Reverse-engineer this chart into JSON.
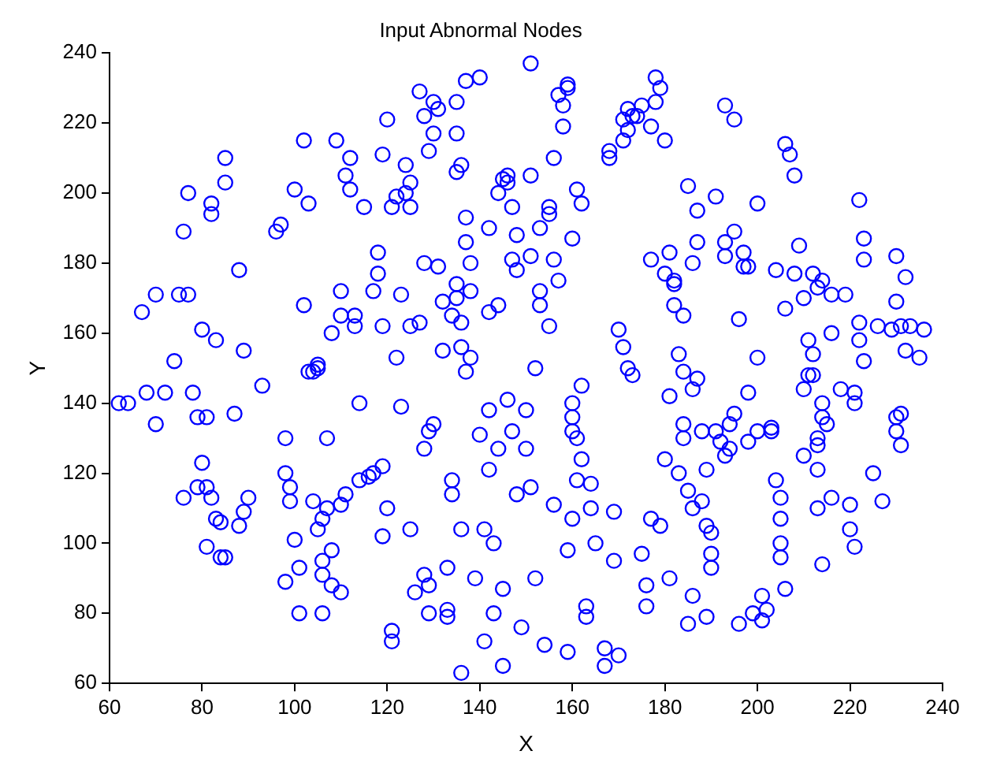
{
  "chart_data": {
    "type": "scatter",
    "title": "Input Abnormal Nodes",
    "xlabel": "X",
    "ylabel": "Y",
    "xlim": [
      60,
      240
    ],
    "xticks": [
      60,
      80,
      100,
      120,
      140,
      160,
      180,
      200,
      220,
      240
    ],
    "ylim": [
      60,
      240
    ],
    "yticks": [
      60,
      80,
      100,
      120,
      140,
      160,
      180,
      200,
      220,
      240
    ],
    "marker": "circle",
    "grid": false,
    "legend": false,
    "series": [
      {
        "color": "#0000ff",
        "x": [
          62,
          64,
          67,
          68,
          70,
          70,
          72,
          74,
          75,
          76,
          76,
          77,
          77,
          78,
          79,
          79,
          80,
          80,
          81,
          81,
          81,
          82,
          82,
          82,
          83,
          83,
          84,
          84,
          85,
          85,
          85,
          87,
          88,
          88,
          89,
          89,
          90,
          93,
          96,
          97,
          98,
          98,
          98,
          99,
          99,
          100,
          100,
          101,
          101,
          102,
          102,
          103,
          103,
          104,
          104,
          105,
          105,
          105,
          106,
          106,
          106,
          106,
          107,
          107,
          108,
          108,
          108,
          109,
          110,
          110,
          110,
          110,
          111,
          111,
          112,
          112,
          113,
          113,
          114,
          114,
          115,
          116,
          117,
          117,
          118,
          118,
          119,
          119,
          119,
          119,
          120,
          120,
          121,
          121,
          121,
          122,
          122,
          123,
          123,
          124,
          124,
          125,
          125,
          125,
          125,
          126,
          127,
          127,
          128,
          128,
          128,
          128,
          129,
          129,
          129,
          129,
          130,
          130,
          130,
          131,
          131,
          132,
          132,
          133,
          133,
          133,
          134,
          134,
          134,
          135,
          135,
          135,
          135,
          135,
          136,
          136,
          136,
          136,
          136,
          137,
          137,
          137,
          137,
          138,
          138,
          138,
          139,
          140,
          140,
          141,
          141,
          142,
          142,
          142,
          142,
          143,
          143,
          144,
          144,
          144,
          145,
          145,
          145,
          146,
          146,
          146,
          147,
          147,
          147,
          148,
          148,
          148,
          149,
          150,
          150,
          151,
          151,
          151,
          151,
          152,
          152,
          153,
          153,
          153,
          154,
          155,
          155,
          155,
          156,
          156,
          156,
          157,
          157,
          158,
          158,
          159,
          159,
          159,
          159,
          160,
          160,
          160,
          160,
          160,
          161,
          161,
          161,
          162,
          162,
          162,
          163,
          163,
          164,
          164,
          165,
          167,
          167,
          168,
          168,
          169,
          169,
          170,
          170,
          171,
          171,
          171,
          172,
          172,
          172,
          173,
          173,
          174,
          175,
          175,
          176,
          176,
          177,
          177,
          177,
          178,
          178,
          179,
          179,
          180,
          180,
          180,
          181,
          181,
          181,
          182,
          182,
          182,
          183,
          183,
          184,
          184,
          184,
          184,
          185,
          185,
          185,
          186,
          186,
          186,
          186,
          187,
          187,
          187,
          188,
          188,
          189,
          189,
          189,
          190,
          190,
          190,
          191,
          191,
          192,
          193,
          193,
          193,
          193,
          194,
          194,
          195,
          195,
          195,
          196,
          196,
          197,
          197,
          198,
          198,
          198,
          199,
          200,
          200,
          200,
          201,
          201,
          202,
          203,
          203,
          204,
          204,
          205,
          205,
          205,
          205,
          206,
          206,
          206,
          207,
          208,
          208,
          209,
          210,
          210,
          210,
          211,
          211,
          212,
          212,
          212,
          213,
          213,
          213,
          213,
          213,
          214,
          214,
          214,
          214,
          215,
          216,
          216,
          216,
          218,
          219,
          220,
          220,
          221,
          221,
          221,
          222,
          222,
          222,
          223,
          223,
          223,
          225,
          226,
          227,
          229,
          230,
          230,
          230,
          230,
          231,
          231,
          231,
          232,
          232,
          233,
          235,
          236
        ],
        "values": [
          140,
          140,
          166,
          143,
          171,
          134,
          143,
          152,
          171,
          113,
          189,
          200,
          171,
          143,
          136,
          116,
          123,
          161,
          136,
          99,
          116,
          113,
          194,
          197,
          158,
          107,
          106,
          96,
          96,
          210,
          203,
          137,
          178,
          105,
          155,
          109,
          113,
          145,
          189,
          191,
          89,
          120,
          130,
          116,
          112,
          201,
          101,
          80,
          93,
          215,
          168,
          149,
          197,
          149,
          112,
          151,
          150,
          104,
          80,
          107,
          91,
          95,
          130,
          110,
          98,
          88,
          160,
          215,
          86,
          111,
          172,
          165,
          114,
          205,
          210,
          201,
          165,
          162,
          140,
          118,
          196,
          119,
          120,
          172,
          177,
          183,
          122,
          102,
          162,
          211,
          221,
          110,
          196,
          75,
          72,
          199,
          153,
          139,
          171,
          208,
          200,
          196,
          104,
          162,
          203,
          86,
          163,
          229,
          180,
          222,
          127,
          91,
          88,
          80,
          132,
          212,
          226,
          217,
          134,
          179,
          224,
          169,
          155,
          81,
          93,
          79,
          114,
          118,
          165,
          226,
          217,
          206,
          174,
          170,
          208,
          163,
          104,
          156,
          63,
          232,
          193,
          149,
          186,
          153,
          172,
          180,
          90,
          131,
          233,
          104,
          72,
          138,
          166,
          121,
          190,
          100,
          80,
          168,
          200,
          127,
          204,
          87,
          65,
          203,
          141,
          205,
          196,
          181,
          132,
          178,
          188,
          114,
          76,
          138,
          127,
          237,
          205,
          182,
          116,
          90,
          150,
          190,
          172,
          168,
          71,
          194,
          162,
          196,
          181,
          210,
          111,
          228,
          175,
          225,
          219,
          231,
          230,
          98,
          69,
          107,
          187,
          140,
          136,
          132,
          201,
          130,
          118,
          197,
          145,
          124,
          79,
          82,
          117,
          110,
          100,
          65,
          70,
          212,
          210,
          109,
          95,
          68,
          161,
          156,
          215,
          221,
          224,
          218,
          150,
          148,
          222,
          222,
          225,
          97,
          88,
          82,
          219,
          181,
          107,
          233,
          226,
          230,
          105,
          215,
          177,
          124,
          183,
          142,
          90,
          175,
          174,
          168,
          120,
          154,
          165,
          130,
          134,
          149,
          202,
          115,
          77,
          180,
          144,
          110,
          85,
          195,
          186,
          147,
          132,
          112,
          121,
          79,
          105,
          103,
          93,
          97,
          199,
          132,
          129,
          225,
          186,
          182,
          125,
          134,
          127,
          137,
          221,
          189,
          77,
          164,
          183,
          179,
          179,
          143,
          129,
          80,
          197,
          153,
          132,
          85,
          78,
          81,
          133,
          132,
          118,
          178,
          100,
          107,
          113,
          96,
          167,
          214,
          87,
          211,
          177,
          205,
          185,
          144,
          125,
          170,
          148,
          158,
          177,
          148,
          154,
          173,
          110,
          130,
          121,
          128,
          175,
          140,
          136,
          94,
          134,
          160,
          171,
          113,
          144,
          171,
          104,
          111,
          99,
          143,
          140,
          163,
          158,
          198,
          187,
          181,
          152,
          120,
          162,
          112,
          161,
          182,
          169,
          132,
          136,
          128,
          162,
          137,
          155,
          176,
          162,
          153,
          161
        ]
      }
    ]
  }
}
